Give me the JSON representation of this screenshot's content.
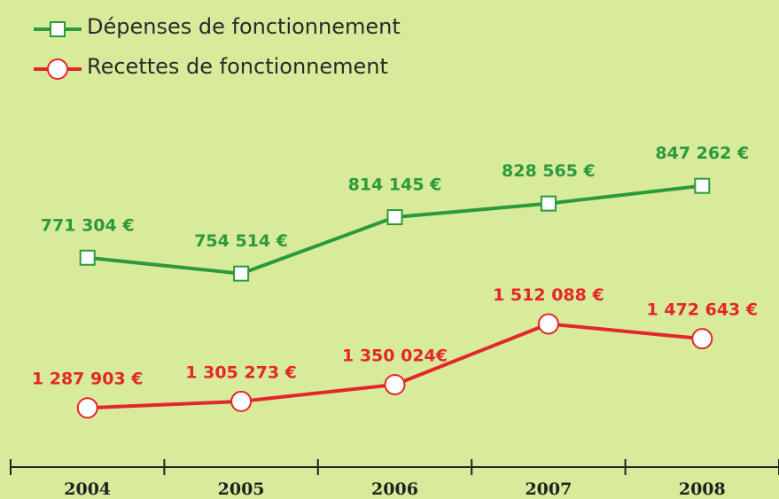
{
  "chart_data": {
    "type": "line",
    "categories": [
      "2004",
      "2005",
      "2006",
      "2007",
      "2008"
    ],
    "series": [
      {
        "name": "Dépenses de fonctionnement",
        "color": "#2a9a3c",
        "marker": "square",
        "values": [
          771304,
          754514,
          814145,
          828565,
          847262
        ],
        "value_labels": [
          "771 304 €",
          "754 514 €",
          "814 145 €",
          "828 565 €",
          "847 262 €"
        ]
      },
      {
        "name": "Recettes de fonctionnement",
        "color": "#e4262a",
        "marker": "circle",
        "axis": "y2",
        "values": [
          1287903,
          1305273,
          1350024,
          1512088,
          1472643
        ],
        "value_labels": [
          "1 287 903 €",
          "1 305 273 €",
          "1 350 024€",
          "1 512 088 €",
          "1 472 643 €"
        ]
      }
    ],
    "ylim": [
      550000,
      950000
    ],
    "y2lim": [
      1130000,
      2140000
    ],
    "legend": "top-left"
  }
}
